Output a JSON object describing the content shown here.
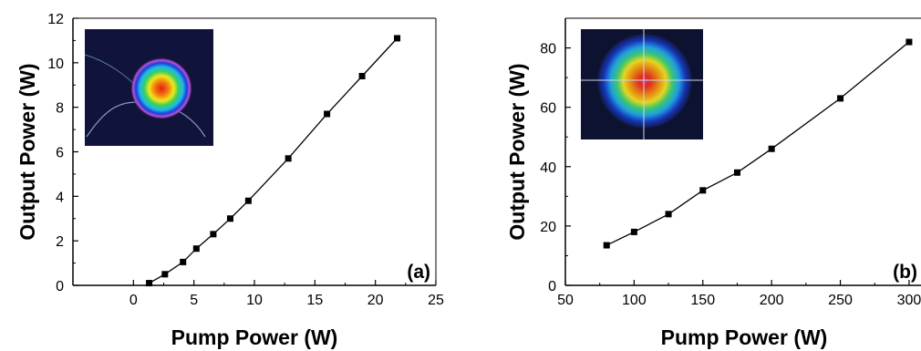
{
  "chart_data": [
    {
      "type": "line",
      "panel_label": "(a)",
      "xlabel": "Pump Power (W)",
      "ylabel": "Output Power (W)",
      "xlim": [
        -5,
        25
      ],
      "ylim": [
        0,
        12
      ],
      "xticks": [
        0,
        5,
        10,
        15,
        20,
        25
      ],
      "yticks": [
        0,
        2,
        4,
        6,
        8,
        10,
        12
      ],
      "x_tick_labels": [
        "0",
        "5",
        "10",
        "15",
        "20",
        "25"
      ],
      "y_tick_labels": [
        "0",
        "2",
        "4",
        "6",
        "8",
        "10",
        "12"
      ],
      "grid": false,
      "marker": "square",
      "inset": "beam-profile-fiber-end",
      "series": [
        {
          "x": [
            1.3,
            2.6,
            4.1,
            5.2,
            6.6,
            8.0,
            9.5,
            12.8,
            16.0,
            18.9,
            21.8
          ],
          "y": [
            0.1,
            0.5,
            1.05,
            1.65,
            2.3,
            3.0,
            3.8,
            5.7,
            7.7,
            9.4,
            11.1
          ]
        }
      ]
    },
    {
      "type": "line",
      "panel_label": "(b)",
      "xlabel": "Pump Power (W)",
      "ylabel": "Output Power (W)",
      "xlim": [
        50,
        310
      ],
      "ylim": [
        0,
        90
      ],
      "xticks": [
        50,
        100,
        150,
        200,
        250,
        300
      ],
      "yticks": [
        0,
        20,
        40,
        60,
        80
      ],
      "x_tick_labels": [
        "50",
        "100",
        "150",
        "200",
        "250",
        "300"
      ],
      "y_tick_labels": [
        "0",
        "20",
        "40",
        "60",
        "80"
      ],
      "grid": false,
      "marker": "square",
      "inset": "beam-profile-crosshair",
      "series": [
        {
          "x": [
            80,
            100,
            125,
            150,
            175,
            200,
            250,
            300
          ],
          "y": [
            13.5,
            18,
            24,
            32,
            38,
            46,
            63,
            82
          ]
        }
      ]
    }
  ]
}
